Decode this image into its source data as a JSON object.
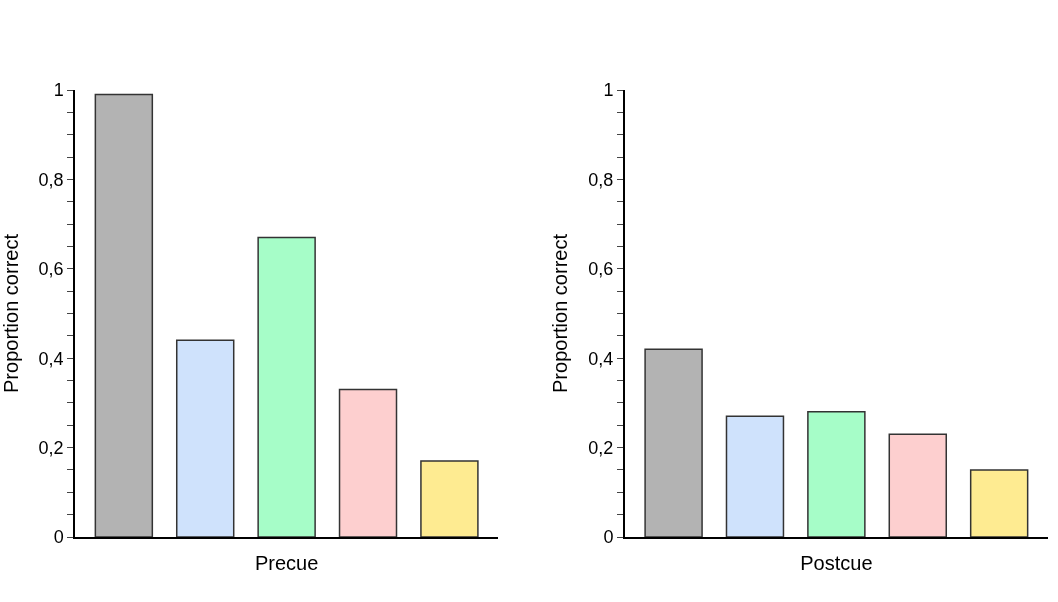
{
  "chart_data": [
    {
      "type": "bar",
      "xlabel": "Precue",
      "ylabel": "Proportion correct",
      "categories": [
        null,
        null,
        null,
        null,
        null
      ],
      "values": [
        0.99,
        0.44,
        0.67,
        0.33,
        0.17
      ],
      "colors": [
        "#b3b3b3",
        "#cfe2fc",
        "#a6fdc8",
        "#fdcfcf",
        "#feeb91"
      ],
      "ylim": [
        0,
        1
      ],
      "yticks": [
        0,
        {
          "value": 0.05,
          "label": null
        },
        {
          "value": 0.1,
          "label": null
        },
        {
          "value": 0.15,
          "label": null
        },
        {
          "value": 0.2,
          "label": "0,2"
        },
        {
          "value": 0.25,
          "label": null
        },
        {
          "value": 0.3,
          "label": null
        },
        {
          "value": 0.35,
          "label": null
        },
        {
          "value": 0.4,
          "label": "0,4"
        },
        {
          "value": 0.45,
          "label": null
        },
        {
          "value": 0.5,
          "label": null
        },
        {
          "value": 0.55,
          "label": null
        },
        {
          "value": 0.6,
          "label": "0,6"
        },
        {
          "value": 0.65,
          "label": null
        },
        {
          "value": 0.7,
          "label": null
        },
        {
          "value": 0.75,
          "label": null
        },
        {
          "value": 0.8,
          "label": "0,8"
        },
        {
          "value": 0.85,
          "label": null
        },
        {
          "value": 0.9,
          "label": null
        },
        {
          "value": 0.95,
          "label": null
        },
        1
      ]
    },
    {
      "type": "bar",
      "xlabel": "Postcue",
      "ylabel": "Proportion correct",
      "categories": [
        null,
        null,
        null,
        null,
        null
      ],
      "values": [
        0.42,
        0.27,
        0.28,
        0.23,
        0.15
      ],
      "colors": [
        "#b3b3b3",
        "#cfe2fc",
        "#a6fdc8",
        "#fdcfcf",
        "#feeb91"
      ],
      "ylim": [
        0,
        1
      ],
      "yticks": [
        0,
        {
          "value": 0.05,
          "label": null
        },
        {
          "value": 0.1,
          "label": null
        },
        {
          "value": 0.15,
          "label": null
        },
        {
          "value": 0.2,
          "label": "0,2"
        },
        {
          "value": 0.25,
          "label": null
        },
        {
          "value": 0.3,
          "label": null
        },
        {
          "value": 0.35,
          "label": null
        },
        {
          "value": 0.4,
          "label": "0,4"
        },
        {
          "value": 0.45,
          "label": null
        },
        {
          "value": 0.5,
          "label": null
        },
        {
          "value": 0.55,
          "label": null
        },
        {
          "value": 0.6,
          "label": "0,6"
        },
        {
          "value": 0.65,
          "label": null
        },
        {
          "value": 0.7,
          "label": null
        },
        {
          "value": 0.75,
          "label": null
        },
        {
          "value": 0.8,
          "label": "0,8"
        },
        {
          "value": 0.85,
          "label": null
        },
        {
          "value": 0.9,
          "label": null
        },
        {
          "value": 0.95,
          "label": null
        },
        1
      ]
    }
  ]
}
